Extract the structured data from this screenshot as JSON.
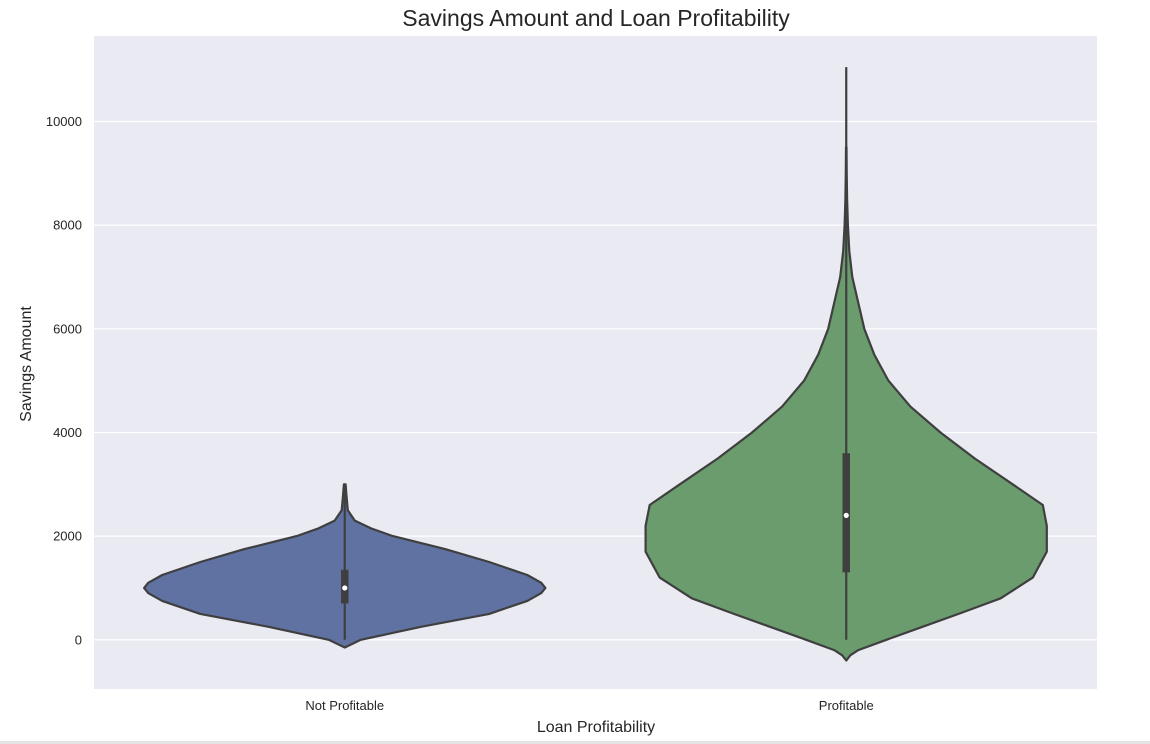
{
  "chart_data": {
    "type": "violin",
    "title": "Savings Amount and Loan Profitability",
    "xlabel": "Loan Profitability",
    "ylabel": "Savings Amount",
    "categories": [
      "Not Profitable",
      "Profitable"
    ],
    "ylim": [
      -950,
      11650
    ],
    "yticks": [
      0,
      2000,
      4000,
      6000,
      8000,
      10000
    ],
    "grid": true,
    "violins": [
      {
        "category": "Not Profitable",
        "color": "#5f72a2",
        "quartiles": [
          700,
          1000,
          1350
        ],
        "whisker_range": [
          0,
          3000
        ],
        "density_outline": [
          [
            -150,
            0.0
          ],
          [
            0,
            0.08
          ],
          [
            250,
            0.38
          ],
          [
            500,
            0.72
          ],
          [
            750,
            0.91
          ],
          [
            900,
            0.98
          ],
          [
            1000,
            1.0
          ],
          [
            1100,
            0.98
          ],
          [
            1250,
            0.91
          ],
          [
            1500,
            0.72
          ],
          [
            1750,
            0.5
          ],
          [
            2000,
            0.24
          ],
          [
            2150,
            0.13
          ],
          [
            2300,
            0.05
          ],
          [
            2500,
            0.015
          ],
          [
            2800,
            0.008
          ],
          [
            3000,
            0.004
          ]
        ]
      },
      {
        "category": "Profitable",
        "color": "#6a9c6e",
        "quartiles": [
          1300,
          2400,
          3600
        ],
        "whisker_range": [
          0,
          11050
        ],
        "density_outline": [
          [
            -400,
            0.0
          ],
          [
            -300,
            0.02
          ],
          [
            -200,
            0.06
          ],
          [
            0,
            0.2
          ],
          [
            250,
            0.38
          ],
          [
            500,
            0.56
          ],
          [
            800,
            0.77
          ],
          [
            1200,
            0.93
          ],
          [
            1700,
            1.0
          ],
          [
            2200,
            1.0
          ],
          [
            2600,
            0.98
          ],
          [
            3000,
            0.83
          ],
          [
            3500,
            0.64
          ],
          [
            4000,
            0.47
          ],
          [
            4500,
            0.32
          ],
          [
            5000,
            0.21
          ],
          [
            5500,
            0.14
          ],
          [
            6000,
            0.09
          ],
          [
            6500,
            0.06
          ],
          [
            7000,
            0.03
          ],
          [
            7500,
            0.015
          ],
          [
            8000,
            0.008
          ],
          [
            8500,
            0.004
          ],
          [
            9000,
            0.002
          ],
          [
            9500,
            0.001
          ]
        ]
      }
    ]
  }
}
